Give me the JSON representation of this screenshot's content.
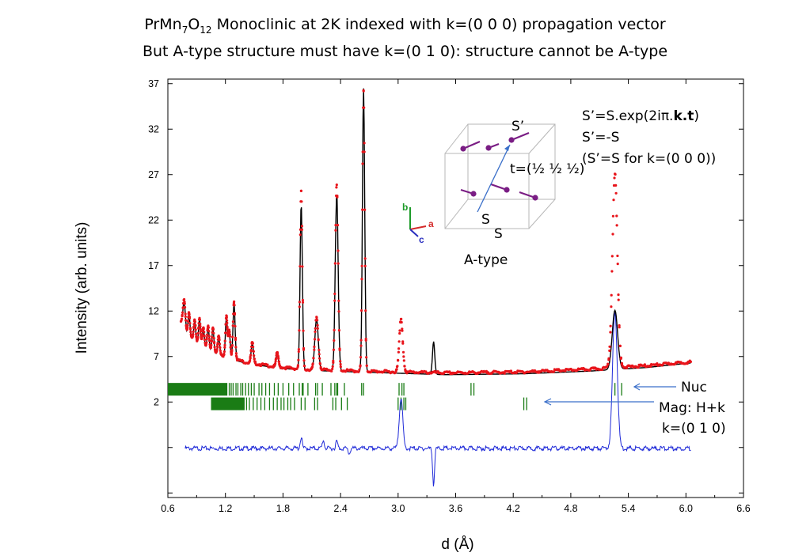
{
  "title": {
    "line1_prefix": "PrMn",
    "line1_sub1": "7",
    "line1_mid": "O",
    "line1_sub2": "12",
    "line1_suffix": " Monoclinic at 2K indexed with k=(0 0 0) propagation vector",
    "line2": "But A-type structure must have  k=(0 1 0): structure cannot be A-type"
  },
  "chart_data": {
    "type": "line",
    "xlabel": "d (Å)",
    "ylabel": "Intensity (arb. units)",
    "xlim": [
      0.6,
      6.6
    ],
    "ylim": [
      -8.5,
      37.5
    ],
    "x_ticks": [
      "0.6",
      "1.2",
      "1.8",
      "2.4",
      "3.0",
      "3.6",
      "4.2",
      "4.8",
      "5.4",
      "6.0",
      "6.6"
    ],
    "y_ticks": [
      "2",
      "7",
      "12",
      "17",
      "22",
      "27",
      "32",
      "37"
    ],
    "series": [
      {
        "name": "observed",
        "color": "#e8141b",
        "style": "dots",
        "x_range": [
          0.75,
          6.05
        ],
        "baseline": 5.4,
        "points": [
          [
            0.75,
            10.8
          ],
          [
            0.8,
            9.5
          ],
          [
            0.9,
            8.6
          ],
          [
            1.0,
            8.0
          ],
          [
            1.1,
            7.4
          ],
          [
            1.2,
            7.0
          ],
          [
            1.4,
            6.4
          ],
          [
            1.7,
            5.9
          ],
          [
            2.0,
            5.6
          ],
          [
            2.6,
            5.4
          ],
          [
            3.5,
            5.2
          ],
          [
            4.3,
            5.3
          ],
          [
            5.0,
            5.6
          ],
          [
            5.6,
            6.0
          ],
          [
            6.05,
            6.4
          ]
        ],
        "peaks": [
          {
            "d": 0.77,
            "height": 3.0,
            "width": 0.012
          },
          {
            "d": 0.82,
            "height": 2.5,
            "width": 0.01
          },
          {
            "d": 0.88,
            "height": 2.2,
            "width": 0.01
          },
          {
            "d": 0.93,
            "height": 2.8,
            "width": 0.01
          },
          {
            "d": 0.97,
            "height": 2.0,
            "width": 0.01
          },
          {
            "d": 1.02,
            "height": 2.5,
            "width": 0.01
          },
          {
            "d": 1.07,
            "height": 2.6,
            "width": 0.01
          },
          {
            "d": 1.13,
            "height": 2.0,
            "width": 0.01
          },
          {
            "d": 1.21,
            "height": 4.5,
            "width": 0.01
          },
          {
            "d": 1.24,
            "height": 3.0,
            "width": 0.01
          },
          {
            "d": 1.29,
            "height": 6.3,
            "width": 0.011
          },
          {
            "d": 1.48,
            "height": 2.3,
            "width": 0.012
          },
          {
            "d": 1.74,
            "height": 1.6,
            "width": 0.012
          },
          {
            "d": 1.99,
            "height": 19.6,
            "width": 0.012
          },
          {
            "d": 2.15,
            "height": 5.8,
            "width": 0.018
          },
          {
            "d": 2.36,
            "height": 20.4,
            "width": 0.015
          },
          {
            "d": 2.64,
            "height": 30.8,
            "width": 0.012
          },
          {
            "d": 3.03,
            "height": 5.8,
            "width": 0.018
          },
          {
            "d": 5.26,
            "height": 21.3,
            "width": 0.026
          }
        ]
      },
      {
        "name": "calculated",
        "color": "#000000",
        "style": "line",
        "x_range": [
          0.75,
          6.05
        ],
        "baseline": 5.3,
        "points": [
          [
            0.75,
            10.6
          ],
          [
            0.8,
            9.4
          ],
          [
            0.9,
            8.5
          ],
          [
            1.0,
            7.9
          ],
          [
            1.1,
            7.3
          ],
          [
            1.2,
            6.9
          ],
          [
            1.4,
            6.3
          ],
          [
            1.7,
            5.8
          ],
          [
            2.0,
            5.5
          ],
          [
            2.6,
            5.3
          ],
          [
            3.5,
            5.0
          ],
          [
            4.3,
            5.1
          ],
          [
            5.0,
            5.4
          ],
          [
            5.6,
            5.8
          ],
          [
            6.05,
            6.3
          ]
        ],
        "peaks": [
          {
            "d": 0.77,
            "height": 3.0,
            "width": 0.012
          },
          {
            "d": 0.82,
            "height": 2.5,
            "width": 0.01
          },
          {
            "d": 0.88,
            "height": 2.2,
            "width": 0.01
          },
          {
            "d": 0.93,
            "height": 2.8,
            "width": 0.01
          },
          {
            "d": 0.97,
            "height": 2.0,
            "width": 0.01
          },
          {
            "d": 1.02,
            "height": 2.5,
            "width": 0.01
          },
          {
            "d": 1.07,
            "height": 2.6,
            "width": 0.01
          },
          {
            "d": 1.13,
            "height": 2.0,
            "width": 0.01
          },
          {
            "d": 1.21,
            "height": 4.5,
            "width": 0.01
          },
          {
            "d": 1.24,
            "height": 3.0,
            "width": 0.01
          },
          {
            "d": 1.29,
            "height": 6.2,
            "width": 0.011
          },
          {
            "d": 1.48,
            "height": 2.3,
            "width": 0.012
          },
          {
            "d": 1.74,
            "height": 1.6,
            "width": 0.012
          },
          {
            "d": 1.99,
            "height": 18.3,
            "width": 0.012
          },
          {
            "d": 2.15,
            "height": 5.7,
            "width": 0.018
          },
          {
            "d": 2.36,
            "height": 19.6,
            "width": 0.015
          },
          {
            "d": 2.64,
            "height": 31.2,
            "width": 0.012
          },
          {
            "d": 3.37,
            "height": 3.6,
            "width": 0.012
          },
          {
            "d": 5.26,
            "height": 6.5,
            "width": 0.028
          }
        ]
      },
      {
        "name": "difference",
        "color": "#1f2ad8",
        "style": "line",
        "x_range": [
          0.78,
          6.05
        ],
        "baseline": -3.1,
        "points": [
          [
            0.78,
            -3.1
          ],
          [
            6.05,
            -3.1
          ]
        ],
        "peaks": [
          {
            "d": 1.99,
            "height": 1.2,
            "width": 0.01
          },
          {
            "d": 2.22,
            "height": 0.9,
            "width": 0.01
          },
          {
            "d": 2.36,
            "height": 0.8,
            "width": 0.01
          },
          {
            "d": 2.49,
            "height": -0.6,
            "width": 0.01
          },
          {
            "d": 3.03,
            "height": 5.6,
            "width": 0.018
          },
          {
            "d": 3.37,
            "height": -4.0,
            "width": 0.01
          },
          {
            "d": 5.26,
            "height": 15.1,
            "width": 0.024
          }
        ]
      }
    ],
    "tick_rows": [
      {
        "name": "Nuc",
        "color": "#1a7c15",
        "y_center": 3.4,
        "dense_band": [
          0.6,
          1.22
        ],
        "positions": [
          1.24,
          1.26,
          1.28,
          1.31,
          1.33,
          1.36,
          1.38,
          1.41,
          1.44,
          1.47,
          1.5,
          1.55,
          1.58,
          1.62,
          1.66,
          1.71,
          1.75,
          1.8,
          1.86,
          1.91,
          1.97,
          2.0,
          2.01,
          2.06,
          2.14,
          2.16,
          2.21,
          2.3,
          2.34,
          2.36,
          2.37,
          2.44,
          2.62,
          2.64,
          3.01,
          3.04,
          3.06,
          3.76,
          3.79,
          5.26,
          5.33
        ]
      },
      {
        "name": "Mag: H+k",
        "color": "#1a7c15",
        "y_center": 1.8,
        "dense_band": [
          1.05,
          1.4
        ],
        "positions": [
          1.42,
          1.45,
          1.49,
          1.53,
          1.57,
          1.61,
          1.66,
          1.7,
          1.74,
          1.78,
          1.81,
          1.85,
          1.88,
          1.92,
          1.99,
          2.03,
          2.13,
          2.16,
          2.32,
          2.35,
          2.41,
          2.47,
          3.0,
          3.03,
          3.06,
          3.08,
          4.31,
          4.34
        ]
      }
    ],
    "inset": {
      "label": "A-type",
      "equations": [
        "S’=S.exp(2iπ.",
        "k.t",
        ")"
      ],
      "equation2": "S’=-S",
      "equation3": "(S’=S for k=(0 0 0))",
      "spin_prime": "S’",
      "spin_a": "S",
      "spin_b": "S",
      "translation": "t=(½ ½ ½)",
      "axes": {
        "b": "b",
        "a": "a",
        "c": "c"
      },
      "spin_color": "#7a1d84",
      "vector_color": "#3a6fc9"
    },
    "annotations": {
      "nuc_label": "Nuc",
      "mag_label": "Mag: H+k",
      "mag_k": "k=(0 1 0)",
      "arrow_color": "#3a6fc9"
    }
  }
}
